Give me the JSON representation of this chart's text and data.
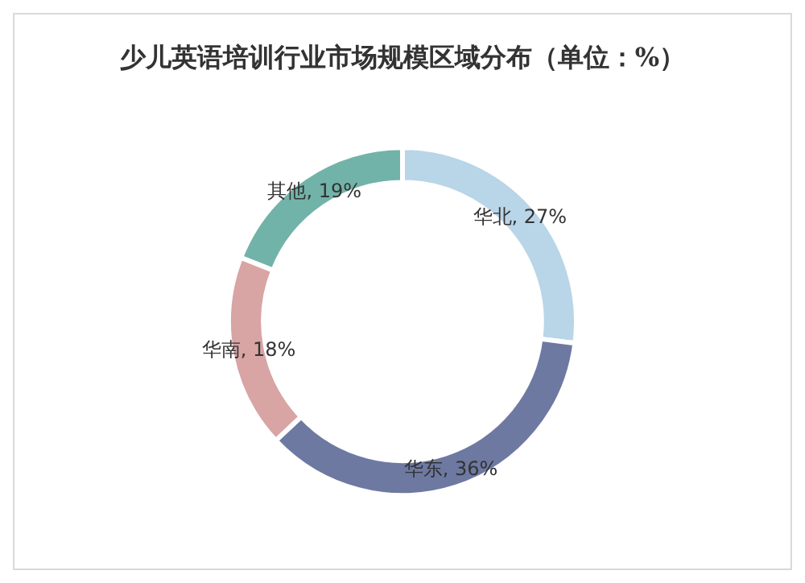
{
  "chart_data": {
    "type": "donut",
    "title": "少儿英语培训行业市场规模区域分布（单位：%）",
    "categories": [
      "华北",
      "华东",
      "华南",
      "其他"
    ],
    "values": [
      27,
      36,
      18,
      19
    ],
    "colors": [
      "#b9d5e8",
      "#6e79a2",
      "#d8a4a4",
      "#72b3a9"
    ],
    "value_labels": [
      "27%",
      "36%",
      "18%",
      "19%"
    ],
    "legend": false
  }
}
